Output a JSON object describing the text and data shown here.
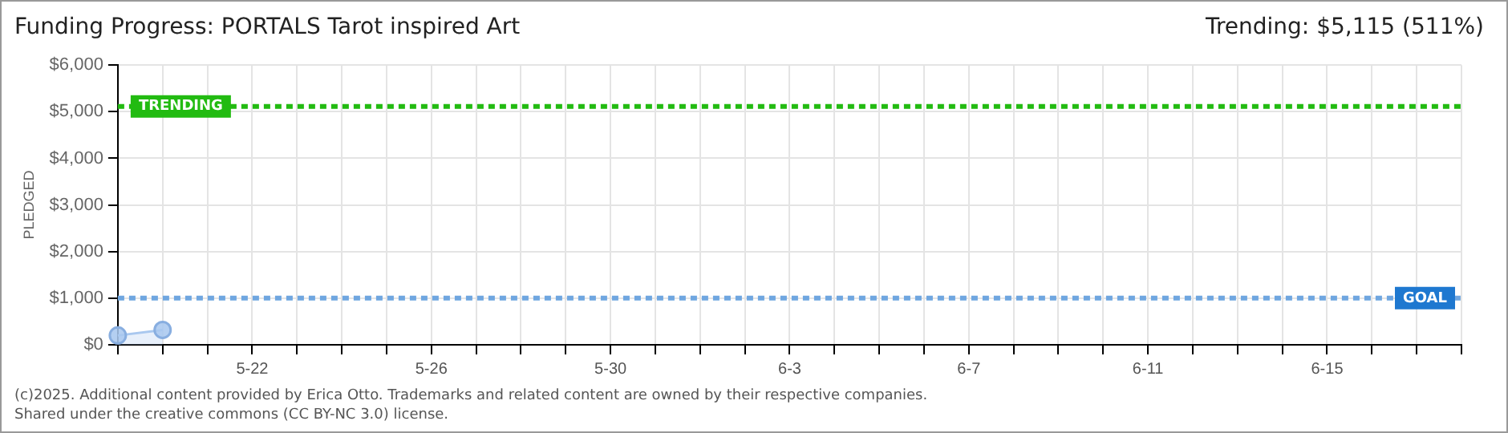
{
  "chart_data": {
    "type": "area",
    "title": "Funding Progress: PORTALS Tarot inspired Art",
    "subtitle": "Trending: $5,115 (511%)",
    "ylabel": "PLEDGED",
    "categories": [
      null,
      null,
      null,
      "5-22",
      null,
      null,
      null,
      "5-26",
      null,
      null,
      null,
      "5-30",
      null,
      null,
      null,
      "6-3",
      null,
      null,
      null,
      "6-7",
      null,
      null,
      null,
      "6-11",
      null,
      null,
      null,
      "6-15",
      null,
      null,
      null
    ],
    "series": [
      {
        "color": "#a9c8ef",
        "values": [
          200,
          320,
          null,
          null,
          null,
          null,
          null,
          null,
          null,
          null,
          null,
          null,
          null,
          null,
          null,
          null,
          null,
          null,
          null,
          null,
          null,
          null,
          null,
          null,
          null,
          null,
          null,
          null,
          null,
          null,
          null
        ]
      }
    ],
    "ylim": [
      0,
      6000
    ],
    "yticks": [
      {
        "value": 0,
        "label": "$0"
      },
      {
        "value": 1000,
        "label": "$1,000"
      },
      {
        "value": 2000,
        "label": "$2,000"
      },
      {
        "value": 3000,
        "label": "$3,000"
      },
      {
        "value": 4000,
        "label": "$4,000"
      },
      {
        "value": 5000,
        "label": "$5,000"
      },
      {
        "value": 6000,
        "label": "$6,000"
      }
    ],
    "ref_lines": [
      {
        "axis": "y",
        "value": 5115,
        "label": "TRENDING",
        "color": "#22bb11",
        "line_style": "dashed"
      },
      {
        "axis": "y",
        "value": 1000,
        "label": "GOAL",
        "color": "#6fa6e0",
        "line_style": "dashed"
      }
    ],
    "grid": true,
    "marker": "circle",
    "legend": false,
    "annotations": [
      "(c)2025. Additional content provided by Erica Otto. Trademarks and related content are owned by their respective companies.",
      "Shared under the creative commons (CC BY-NC 3.0) license."
    ]
  }
}
